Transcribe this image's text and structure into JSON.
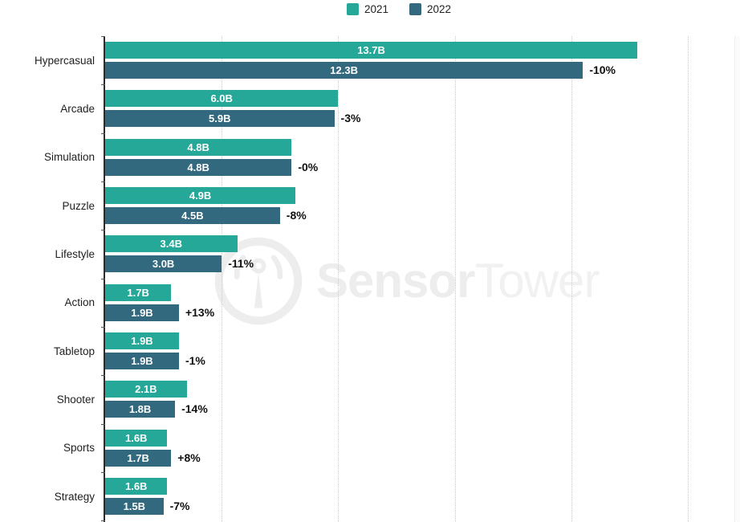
{
  "legend": {
    "position": "top-center",
    "items": [
      {
        "label": "2021",
        "color": "#25a898"
      },
      {
        "label": "2022",
        "color": "#33697f"
      }
    ]
  },
  "watermark": {
    "brand_bold": "Sensor",
    "brand_light": "Tower",
    "logo": "sensortower-antenna-circle",
    "color": "#ededed"
  },
  "colors": {
    "series_2021": "#25a898",
    "series_2022": "#33697f",
    "axis": "#2b2b2b",
    "gridline": "#cccccc",
    "value_label": "#ffffff",
    "change_label": "#111111"
  },
  "chart_data": {
    "type": "bar",
    "orientation": "horizontal",
    "unit": "B",
    "categories": [
      "Hypercasual",
      "Arcade",
      "Simulation",
      "Puzzle",
      "Lifestyle",
      "Action",
      "Tabletop",
      "Shooter",
      "Sports",
      "Strategy"
    ],
    "series": [
      {
        "name": "2021",
        "color": "#25a898",
        "values": [
          13.7,
          6.0,
          4.8,
          4.9,
          3.4,
          1.7,
          1.9,
          2.1,
          1.6,
          1.6
        ],
        "labels": [
          "13.7B",
          "6.0B",
          "4.8B",
          "4.9B",
          "3.4B",
          "1.7B",
          "1.9B",
          "2.1B",
          "1.6B",
          "1.6B"
        ]
      },
      {
        "name": "2022",
        "color": "#33697f",
        "values": [
          12.3,
          5.9,
          4.8,
          4.5,
          3.0,
          1.9,
          1.9,
          1.8,
          1.7,
          1.5
        ],
        "labels": [
          "12.3B",
          "5.9B",
          "4.8B",
          "4.5B",
          "3.0B",
          "1.9B",
          "1.9B",
          "1.8B",
          "1.7B",
          "1.5B"
        ]
      }
    ],
    "change_labels": [
      "-10%",
      "-3%",
      "-0%",
      "-8%",
      "-11%",
      "+13%",
      "-1%",
      "-14%",
      "+8%",
      "-7%"
    ],
    "xlim": [
      0,
      16.3
    ],
    "gridlines": [
      3,
      6,
      9,
      12,
      15
    ],
    "grid": "dotted-vertical",
    "value_labels_inside_bars": true,
    "legend_position": "top-center"
  }
}
